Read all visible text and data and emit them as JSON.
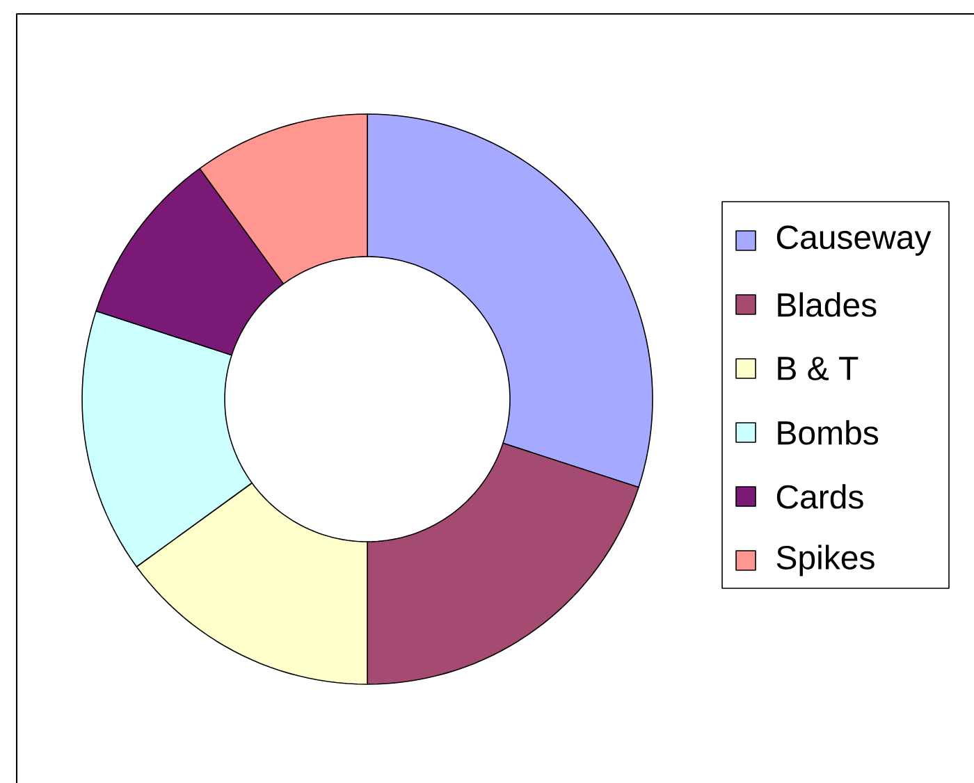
{
  "chart_data": {
    "type": "donut",
    "categories": [
      "Causeway",
      "Blades",
      "B & T",
      "Bombs",
      "Cards",
      "Spikes"
    ],
    "values": [
      30,
      20,
      15,
      15,
      10,
      10
    ],
    "colors": [
      "#a5a9ff",
      "#a54a70",
      "#ffffcc",
      "#ccffff",
      "#7a1a76",
      "#ff9690"
    ],
    "legend": "right"
  }
}
